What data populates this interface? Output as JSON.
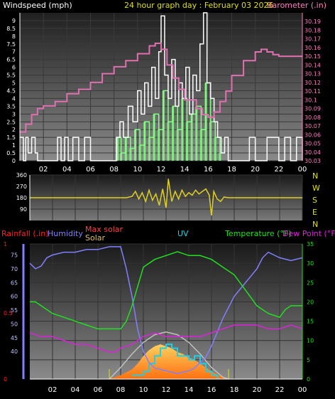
{
  "header": {
    "title_left": "Windspeed (mph)",
    "title_center": "24 hour graph day : February 03 2026",
    "title_right": "Barometer (.in)"
  },
  "direction_labels": [
    "N",
    "W",
    "S",
    "E",
    "N"
  ],
  "bottom_header": {
    "rainfall": "Rainfall (.in)",
    "humidity": "Humidity",
    "max_solar": "Max solar",
    "solar": "Solar",
    "uv": "UV",
    "temperature": "Temperature (°F)",
    "dew_point": "Dew Point (°F)"
  },
  "colors": {
    "wind_speed": "#ffffff",
    "wind_gust": "#80ff80",
    "barometer": "#e070b0",
    "wind_dir": "#e0d020",
    "humidity": "#8080ff",
    "temperature": "#20e020",
    "dew_point": "#e020e0",
    "solar": "#ff9020",
    "max_solar": "#c0c0c0",
    "uv": "#20d0e0",
    "rain": "#ff2020",
    "title_yellow": "#e0e000",
    "title_pink": "#ff80c0"
  },
  "chart_data": [
    {
      "type": "line",
      "name": "wind-barometer",
      "x_tick_labels": [
        "02",
        "04",
        "06",
        "08",
        "10",
        "12",
        "14",
        "16",
        "18",
        "20",
        "22",
        "00"
      ],
      "y_left_ticks": [
        "0",
        "0.5",
        "1",
        "1.5",
        "2",
        "2.5",
        "3",
        "3.5",
        "4",
        "4.5",
        "5",
        "5.5",
        "6",
        "6.5",
        "7",
        "7.5",
        "8",
        "8.5",
        "9"
      ],
      "y_right_ticks": [
        "30.03",
        "30.04",
        "30.05",
        "30.06",
        "30.07",
        "30.08",
        "30.09",
        "30.1",
        "30.11",
        "30.12",
        "30.13",
        "30.14",
        "30.15",
        "30.16",
        "30.17",
        "30.18",
        "30.19"
      ],
      "ylim_left": [
        0,
        9.5
      ],
      "ylim_right": [
        30.03,
        30.2
      ],
      "wind_speed": {
        "x": [
          0,
          0.3,
          0.5,
          0.7,
          1.0,
          1.3,
          1.5,
          3.2,
          3.5,
          3.8,
          4.1,
          4.5,
          5.0,
          5.5,
          6.0,
          7.0,
          8.2,
          8.5,
          8.8,
          9.2,
          9.6,
          10.0,
          10.3,
          10.6,
          10.9,
          11.2,
          11.5,
          11.8,
          12.0,
          12.3,
          12.6,
          12.9,
          13.2,
          13.5,
          13.8,
          14.1,
          14.4,
          14.7,
          15.0,
          15.3,
          15.6,
          15.9,
          16.2,
          16.5,
          16.8,
          17.1,
          17.4,
          17.7,
          18.0,
          18.5,
          19.0,
          19.5,
          20.0,
          21.0,
          22.0,
          22.5,
          23.0,
          23.5,
          24.0
        ],
        "y": [
          1.5,
          0,
          1.5,
          0.5,
          1.5,
          0.5,
          0,
          1.5,
          0,
          1.5,
          0,
          1.5,
          0,
          1.5,
          0,
          0,
          1.5,
          2.5,
          1.5,
          3.5,
          2.5,
          4.5,
          3.0,
          5.0,
          3.5,
          6.0,
          4.0,
          7.0,
          9.3,
          5.5,
          4.0,
          6.5,
          3.5,
          5.0,
          4.0,
          6.0,
          3.0,
          5.5,
          4.5,
          7.5,
          9.5,
          5.0,
          4.0,
          2.5,
          1.5,
          0.5,
          1.5,
          0,
          0,
          0,
          0,
          1.5,
          0,
          1.5,
          0,
          1.5,
          0,
          1.5,
          0
        ]
      },
      "wind_gust": {
        "x": [
          8.3,
          8.6,
          9.0,
          9.4,
          9.8,
          10.2,
          10.6,
          11.0,
          11.4,
          11.8,
          12.2,
          12.6,
          13.0,
          13.4,
          13.8,
          14.2,
          14.6,
          15.0,
          15.4,
          15.8,
          16.2,
          16.6,
          17.0
        ],
        "y": [
          1.5,
          0.5,
          1.5,
          0.8,
          2.0,
          1.0,
          2.5,
          1.5,
          3.0,
          2.0,
          4.5,
          2.5,
          3.5,
          2.0,
          4.0,
          2.5,
          3.0,
          3.5,
          2.0,
          5.0,
          2.5,
          1.5,
          0.5
        ]
      },
      "barometer": {
        "x": [
          0,
          0.5,
          1.0,
          1.5,
          2.0,
          3.0,
          4.0,
          5.0,
          6.0,
          7.0,
          8.0,
          9.0,
          10.0,
          11.0,
          11.5,
          12.0,
          12.5,
          13.0,
          13.5,
          14.0,
          15.0,
          15.5,
          16.0,
          16.5,
          17.0,
          17.5,
          18.0,
          19.0,
          20.0,
          20.5,
          21.0,
          21.5,
          22.0,
          23.0,
          24.0
        ],
        "y": [
          30.063,
          30.072,
          30.083,
          30.09,
          30.093,
          30.098,
          30.107,
          30.112,
          30.12,
          30.13,
          30.138,
          30.145,
          30.153,
          30.162,
          30.165,
          30.158,
          30.14,
          30.125,
          30.112,
          30.1,
          30.09,
          30.083,
          30.08,
          30.086,
          30.098,
          30.11,
          30.128,
          30.145,
          30.155,
          30.158,
          30.155,
          30.152,
          30.15,
          30.15,
          30.15
        ]
      }
    },
    {
      "type": "line",
      "name": "wind-direction",
      "y_ticks": [
        "90",
        "180",
        "270",
        "360"
      ],
      "ylim": [
        0,
        360
      ],
      "direction": {
        "x": [
          0,
          8.5,
          9.0,
          9.3,
          9.6,
          9.9,
          10.2,
          10.5,
          10.8,
          11.1,
          11.4,
          11.7,
          12.0,
          12.2,
          12.5,
          12.8,
          13.1,
          13.4,
          13.7,
          14.0,
          14.3,
          14.6,
          14.9,
          15.2,
          15.5,
          15.8,
          16.0,
          16.2,
          16.5,
          16.8,
          17.1,
          17.5,
          24.0
        ],
        "y": [
          180,
          180,
          190,
          230,
          170,
          220,
          150,
          240,
          160,
          210,
          120,
          250,
          100,
          330,
          150,
          230,
          170,
          240,
          190,
          220,
          200,
          240,
          210,
          230,
          250,
          200,
          40,
          230,
          170,
          150,
          185,
          180,
          180
        ]
      }
    },
    {
      "type": "line",
      "name": "solar-temp-humidity",
      "x_tick_labels": [
        "02",
        "04",
        "06",
        "08",
        "10",
        "12",
        "14",
        "16",
        "18",
        "20",
        "22",
        "00"
      ],
      "y_left_ticks": [
        "0",
        "0.5",
        "1"
      ],
      "y_humidity_ticks": [
        "40",
        "45",
        "50",
        "55",
        "60",
        "65",
        "70",
        "75"
      ],
      "y_right_ticks": [
        "0",
        "5",
        "10",
        "15",
        "20",
        "25",
        "30",
        "35"
      ],
      "ylim_humidity": [
        30,
        79
      ],
      "ylim_temp": [
        0,
        35
      ],
      "humidity": {
        "x": [
          0,
          0.5,
          1.0,
          1.5,
          2.0,
          3.0,
          4.0,
          5.0,
          6.0,
          7.0,
          7.5,
          8.0,
          8.5,
          9.0,
          9.5,
          10.0,
          10.5,
          11.0,
          12.0,
          13.0,
          14.0,
          14.5,
          15.0,
          15.5,
          16.0,
          16.5,
          17.0,
          17.5,
          18.0,
          19.0,
          20.0,
          20.5,
          21.0,
          21.5,
          22.0,
          23.0,
          24.0
        ],
        "y": [
          72,
          70,
          71,
          74,
          75,
          76,
          76,
          77,
          77,
          78,
          78,
          78,
          70,
          60,
          48,
          40,
          36,
          34,
          33,
          32,
          33,
          34,
          36,
          38,
          42,
          47,
          52,
          56,
          60,
          65,
          70,
          74,
          76,
          75,
          74,
          73,
          74
        ]
      },
      "temperature": {
        "x": [
          0,
          0.5,
          1.0,
          2.0,
          3.0,
          4.0,
          5.0,
          6.0,
          7.0,
          8.0,
          8.5,
          9.0,
          9.5,
          10.0,
          11.0,
          12.0,
          13.0,
          14.0,
          15.0,
          16.0,
          17.0,
          17.5,
          18.0,
          19.0,
          20.0,
          21.0,
          22.0,
          22.5,
          23.0,
          24.0
        ],
        "y": [
          20,
          20,
          19,
          17,
          16,
          15,
          14,
          13,
          13,
          13,
          15,
          19,
          24,
          29,
          31,
          32,
          33,
          32,
          32,
          31,
          29,
          28,
          27,
          23,
          19,
          17,
          16,
          18,
          19,
          19
        ]
      },
      "dew_point": {
        "x": [
          0,
          1.0,
          2.0,
          3.0,
          4.0,
          5.0,
          6.0,
          7.0,
          7.5,
          8.0,
          9.0,
          10.0,
          11.0,
          12.0,
          13.0,
          14.0,
          15.0,
          16.0,
          17.0,
          18.0,
          19.0,
          20.0,
          21.0,
          22.0,
          23.0,
          24.0
        ],
        "y": [
          12,
          11,
          11,
          10,
          9,
          9,
          8,
          7,
          7,
          8,
          9,
          11,
          12,
          11,
          11,
          11,
          11,
          12,
          13,
          14,
          14,
          14,
          13,
          13,
          14,
          13
        ]
      },
      "max_solar": {
        "x": [
          7.0,
          8.0,
          9.0,
          10.0,
          11.0,
          12.0,
          13.0,
          14.0,
          15.0,
          16.0,
          17.0,
          17.5
        ],
        "y": [
          0,
          3.0,
          6.5,
          9.5,
          11.5,
          12.2,
          11.5,
          9.5,
          6.5,
          3.0,
          0.5,
          0
        ]
      },
      "solar": {
        "x": [
          7.0,
          8.0,
          9.0,
          9.5,
          10.0,
          10.5,
          11.0,
          11.5,
          12.0,
          12.5,
          13.0,
          13.5,
          14.0,
          14.5,
          15.0,
          15.5,
          16.0,
          17.0,
          17.5
        ],
        "y": [
          0,
          1.0,
          2.5,
          4.0,
          6.0,
          7.5,
          8.5,
          9.0,
          8.5,
          8.0,
          7.0,
          6.5,
          5.5,
          5.0,
          4.0,
          3.0,
          2.0,
          0.5,
          0
        ]
      },
      "uv": {
        "x": [
          9.0,
          10.0,
          10.5,
          11.0,
          11.5,
          12.0,
          12.5,
          13.0,
          14.0,
          14.5,
          15.0,
          15.5,
          16.0,
          16.5
        ],
        "y": [
          1,
          2,
          4,
          6,
          8,
          9,
          8,
          6,
          5,
          6,
          4,
          2,
          1,
          0
        ]
      }
    }
  ]
}
